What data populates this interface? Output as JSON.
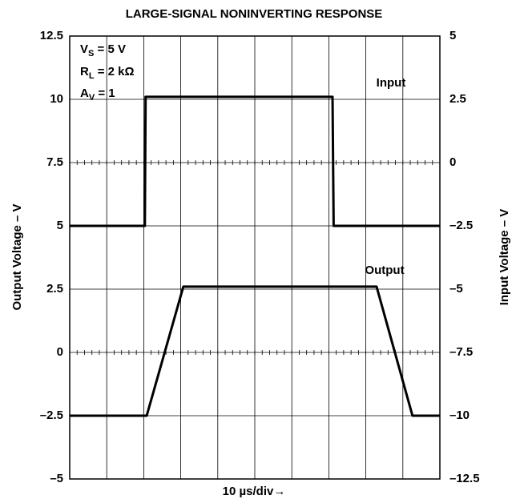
{
  "chart_data": {
    "type": "line",
    "title": "LARGE-SIGNAL NONINVERTING RESPONSE",
    "xlabel": "10 µs/div→",
    "ylabel": "Output Voltage – V",
    "y2label": "Input Voltage – V",
    "xlim": [
      0,
      100
    ],
    "xticks": [
      0,
      10,
      20,
      30,
      40,
      50,
      60,
      70,
      80,
      90,
      100
    ],
    "ylim": [
      -5,
      12.5
    ],
    "yticks": [
      {
        "value": -5,
        "label": "–5"
      },
      {
        "value": -2.5,
        "label": "–2.5"
      },
      0,
      2.5,
      5,
      7.5,
      10,
      12.5
    ],
    "y2lim": [
      -12.5,
      5
    ],
    "y2ticks": [
      {
        "value": -12.5,
        "label": "–12.5"
      },
      {
        "value": -10,
        "label": "–10"
      },
      {
        "value": -7.5,
        "label": "–7.5"
      },
      {
        "value": -5,
        "label": "–5"
      },
      {
        "value": -2.5,
        "label": "–2.5"
      },
      0,
      2.5,
      5
    ],
    "grid": true,
    "series": [
      {
        "name": "Input",
        "color": "#000000",
        "axis": "y2",
        "x": [
          0,
          20.3,
          20.5,
          71,
          71.3,
          100
        ],
        "values": [
          -2.5,
          -2.5,
          2.6,
          2.6,
          -2.5,
          -2.5
        ]
      },
      {
        "name": "Output",
        "color": "#000000",
        "x": [
          0,
          20.8,
          30.7,
          82.9,
          92.6,
          100
        ],
        "values": [
          -2.5,
          -2.5,
          2.6,
          2.6,
          -2.5,
          -2.5
        ]
      }
    ],
    "annotations": [
      {
        "main": "V",
        "sub": "S",
        "tail": " = 5 V"
      },
      {
        "main": "R",
        "sub": "L",
        "tail": " = 2 kΩ"
      },
      {
        "main": "A",
        "sub": "V",
        "tail": " = 1"
      }
    ]
  }
}
